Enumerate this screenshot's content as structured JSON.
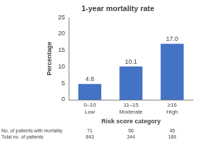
{
  "chart_data": {
    "type": "bar",
    "title": "1-year mortality rate",
    "x_label": "Risk score category",
    "y_label": "Percentage",
    "categories": [
      [
        "0–10",
        "Low"
      ],
      [
        "11–15",
        "Moderate"
      ],
      [
        "≥16",
        "High"
      ]
    ],
    "values": [
      4.8,
      10.1,
      17.0
    ],
    "value_labels": [
      "4.8",
      "10.1",
      "17.0"
    ],
    "data_labels": true,
    "color": "#4472c4",
    "ylim": [
      0,
      25
    ],
    "yticks": [
      0,
      5,
      10,
      15,
      20,
      25
    ],
    "grid": false,
    "table": {
      "rows": [
        {
          "label": "No. of patients with mortality",
          "values": [
            71,
            56,
            45
          ]
        },
        {
          "label": "Total no. of patients",
          "values": [
            843,
            344,
            186
          ]
        }
      ]
    }
  }
}
